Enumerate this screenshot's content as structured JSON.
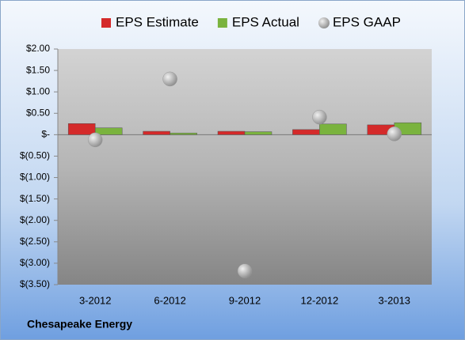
{
  "chart_data": {
    "type": "bar",
    "categories": [
      "3-2012",
      "6-2012",
      "9-2012",
      "12-2012",
      "3-2013"
    ],
    "series": [
      {
        "name": "EPS Estimate",
        "color": "#d42a2a",
        "values": [
          0.26,
          0.08,
          0.08,
          0.12,
          0.23
        ]
      },
      {
        "name": "EPS Actual",
        "color": "#7ab33e",
        "values": [
          0.16,
          0.04,
          0.07,
          0.25,
          0.28
        ]
      },
      {
        "name": "EPS GAAP",
        "type": "scatter",
        "color": "#a6a6a6",
        "values": [
          -0.12,
          1.3,
          -3.18,
          0.41,
          0.02
        ]
      }
    ],
    "ylim": [
      -3.5,
      2.0
    ],
    "yticks": [
      {
        "value": 2.0,
        "label": "$2.00"
      },
      {
        "value": 1.5,
        "label": "$1.50"
      },
      {
        "value": 1.0,
        "label": "$1.00"
      },
      {
        "value": 0.5,
        "label": "$0.50"
      },
      {
        "value": 0,
        "label": "$-"
      },
      {
        "value": -0.5,
        "label": "$(0.50)"
      },
      {
        "value": -1.0,
        "label": "$(1.00)"
      },
      {
        "value": -1.5,
        "label": "$(1.50)"
      },
      {
        "value": -2.0,
        "label": "$(2.00)"
      },
      {
        "value": -2.5,
        "label": "$(2.50)"
      },
      {
        "value": -3.0,
        "label": "$(3.00)"
      },
      {
        "value": -3.5,
        "label": "$(3.50)"
      }
    ],
    "grid": false,
    "legend": "top",
    "annotation": "Chesapeake Energy"
  }
}
